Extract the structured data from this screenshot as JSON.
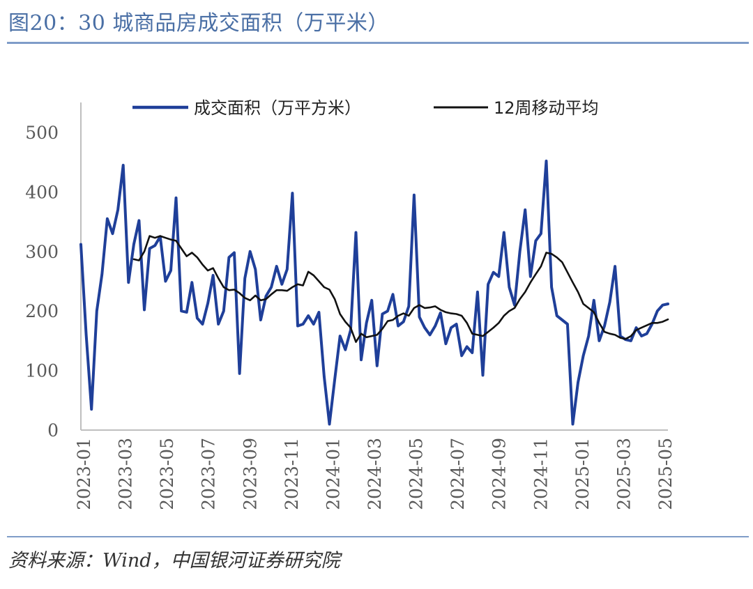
{
  "header": {
    "title": "图20：30 城商品房成交面积（万平米）"
  },
  "footer": {
    "source": "资料来源：Wind，中国银河证券研究院"
  },
  "chart_data": {
    "type": "line",
    "ylim": [
      0,
      550
    ],
    "yticks": [
      "0",
      "100",
      "200",
      "300",
      "400",
      "500"
    ],
    "xticks": [
      "2023-01",
      "2023-03",
      "2023-05",
      "2023-07",
      "2023-09",
      "2023-11",
      "2024-01",
      "2024-03",
      "2024-05",
      "2024-07",
      "2024-09",
      "2024-11",
      "2025-01",
      "2025-03",
      "2025-05"
    ],
    "series": [
      {
        "name": "成交面积（万平方米）",
        "color": "#1f3f99",
        "points": [
          [
            0.0,
            312
          ],
          [
            0.5,
            160
          ],
          [
            1.0,
            35
          ],
          [
            1.5,
            200
          ],
          [
            2.0,
            262
          ],
          [
            2.5,
            355
          ],
          [
            3.0,
            330
          ],
          [
            3.5,
            370
          ],
          [
            4.0,
            445
          ],
          [
            4.5,
            248
          ],
          [
            5.0,
            312
          ],
          [
            5.5,
            352
          ],
          [
            6.0,
            202
          ],
          [
            6.5,
            305
          ],
          [
            7.0,
            310
          ],
          [
            7.5,
            325
          ],
          [
            8.0,
            250
          ],
          [
            8.5,
            268
          ],
          [
            9.0,
            390
          ],
          [
            9.5,
            200
          ],
          [
            10.0,
            198
          ],
          [
            10.5,
            248
          ],
          [
            11.0,
            188
          ],
          [
            11.5,
            178
          ],
          [
            12.0,
            213
          ],
          [
            12.5,
            260
          ],
          [
            13.0,
            178
          ],
          [
            13.5,
            200
          ],
          [
            14.0,
            290
          ],
          [
            14.5,
            298
          ],
          [
            15.0,
            95
          ],
          [
            15.5,
            255
          ],
          [
            16.0,
            300
          ],
          [
            16.5,
            270
          ],
          [
            17.0,
            185
          ],
          [
            17.5,
            225
          ],
          [
            18.0,
            240
          ],
          [
            18.5,
            275
          ],
          [
            19.0,
            245
          ],
          [
            19.5,
            270
          ],
          [
            20.0,
            398
          ],
          [
            20.5,
            175
          ],
          [
            21.0,
            178
          ],
          [
            21.5,
            192
          ],
          [
            22.0,
            178
          ],
          [
            22.5,
            198
          ],
          [
            23.0,
            90
          ],
          [
            23.5,
            10
          ],
          [
            24.0,
            85
          ],
          [
            24.5,
            158
          ],
          [
            25.0,
            135
          ],
          [
            25.5,
            168
          ],
          [
            26.0,
            332
          ],
          [
            26.5,
            118
          ],
          [
            27.0,
            180
          ],
          [
            27.5,
            218
          ],
          [
            28.0,
            108
          ],
          [
            28.5,
            195
          ],
          [
            29.0,
            200
          ],
          [
            29.5,
            228
          ],
          [
            30.0,
            175
          ],
          [
            30.5,
            182
          ],
          [
            31.0,
            208
          ],
          [
            31.5,
            395
          ],
          [
            32.0,
            190
          ],
          [
            32.5,
            172
          ],
          [
            33.0,
            160
          ],
          [
            33.5,
            175
          ],
          [
            34.0,
            197
          ],
          [
            34.5,
            145
          ],
          [
            35.0,
            172
          ],
          [
            35.5,
            178
          ],
          [
            36.0,
            125
          ],
          [
            36.5,
            140
          ],
          [
            37.0,
            130
          ],
          [
            37.5,
            232
          ],
          [
            38.0,
            92
          ],
          [
            38.5,
            245
          ],
          [
            39.0,
            265
          ],
          [
            39.5,
            258
          ],
          [
            40.0,
            332
          ],
          [
            40.5,
            240
          ],
          [
            41.0,
            210
          ],
          [
            41.5,
            300
          ],
          [
            42.0,
            370
          ],
          [
            42.5,
            258
          ],
          [
            43.0,
            318
          ],
          [
            43.5,
            330
          ],
          [
            44.0,
            452
          ],
          [
            44.5,
            240
          ],
          [
            45.0,
            192
          ],
          [
            45.5,
            185
          ],
          [
            46.0,
            178
          ],
          [
            46.5,
            10
          ],
          [
            47.0,
            80
          ],
          [
            47.5,
            125
          ],
          [
            48.0,
            158
          ],
          [
            48.5,
            218
          ],
          [
            49.0,
            150
          ],
          [
            49.5,
            175
          ],
          [
            50.0,
            215
          ],
          [
            50.5,
            275
          ],
          [
            51.0,
            158
          ],
          [
            51.5,
            152
          ],
          [
            52.0,
            150
          ],
          [
            52.5,
            172
          ],
          [
            53.0,
            158
          ],
          [
            53.5,
            162
          ],
          [
            54.0,
            178
          ],
          [
            54.5,
            200
          ],
          [
            55.0,
            210
          ],
          [
            55.5,
            212
          ]
        ]
      },
      {
        "name": "12周移动平均",
        "color": "#111111",
        "points": [
          [
            5.0,
            287
          ],
          [
            5.5,
            285
          ],
          [
            6.0,
            300
          ],
          [
            6.5,
            326
          ],
          [
            7.0,
            323
          ],
          [
            7.5,
            326
          ],
          [
            8.0,
            323
          ],
          [
            8.5,
            320
          ],
          [
            9.0,
            318
          ],
          [
            9.5,
            305
          ],
          [
            10.0,
            292
          ],
          [
            10.5,
            298
          ],
          [
            11.0,
            290
          ],
          [
            11.5,
            278
          ],
          [
            12.0,
            268
          ],
          [
            12.5,
            272
          ],
          [
            13.0,
            255
          ],
          [
            13.5,
            240
          ],
          [
            14.0,
            235
          ],
          [
            14.5,
            236
          ],
          [
            15.0,
            230
          ],
          [
            15.5,
            222
          ],
          [
            16.0,
            218
          ],
          [
            16.5,
            226
          ],
          [
            17.0,
            218
          ],
          [
            17.5,
            220
          ],
          [
            18.0,
            228
          ],
          [
            18.5,
            235
          ],
          [
            19.0,
            235
          ],
          [
            19.5,
            234
          ],
          [
            20.0,
            240
          ],
          [
            20.5,
            245
          ],
          [
            21.0,
            243
          ],
          [
            21.5,
            266
          ],
          [
            22.0,
            260
          ],
          [
            22.5,
            250
          ],
          [
            23.0,
            240
          ],
          [
            23.5,
            236
          ],
          [
            24.0,
            220
          ],
          [
            24.5,
            195
          ],
          [
            25.0,
            182
          ],
          [
            25.5,
            172
          ],
          [
            26.0,
            148
          ],
          [
            26.5,
            162
          ],
          [
            27.0,
            156
          ],
          [
            27.5,
            158
          ],
          [
            28.0,
            160
          ],
          [
            28.5,
            170
          ],
          [
            29.0,
            183
          ],
          [
            29.5,
            185
          ],
          [
            30.0,
            192
          ],
          [
            30.5,
            196
          ],
          [
            31.0,
            192
          ],
          [
            31.5,
            205
          ],
          [
            32.0,
            210
          ],
          [
            32.5,
            205
          ],
          [
            33.0,
            206
          ],
          [
            33.5,
            208
          ],
          [
            34.0,
            202
          ],
          [
            34.5,
            198
          ],
          [
            35.0,
            196
          ],
          [
            35.5,
            195
          ],
          [
            36.0,
            192
          ],
          [
            36.5,
            180
          ],
          [
            37.0,
            162
          ],
          [
            37.5,
            160
          ],
          [
            38.0,
            158
          ],
          [
            38.5,
            165
          ],
          [
            39.0,
            172
          ],
          [
            39.5,
            180
          ],
          [
            40.0,
            192
          ],
          [
            40.5,
            200
          ],
          [
            41.0,
            205
          ],
          [
            41.5,
            220
          ],
          [
            42.0,
            232
          ],
          [
            42.5,
            248
          ],
          [
            43.0,
            262
          ],
          [
            43.5,
            275
          ],
          [
            44.0,
            298
          ],
          [
            44.5,
            296
          ],
          [
            45.0,
            290
          ],
          [
            45.5,
            282
          ],
          [
            46.0,
            265
          ],
          [
            46.5,
            248
          ],
          [
            47.0,
            232
          ],
          [
            47.5,
            212
          ],
          [
            48.0,
            205
          ],
          [
            48.5,
            198
          ],
          [
            49.0,
            180
          ],
          [
            49.5,
            165
          ],
          [
            50.0,
            162
          ],
          [
            50.5,
            160
          ],
          [
            51.0,
            155
          ],
          [
            51.5,
            153
          ],
          [
            52.0,
            158
          ],
          [
            52.5,
            168
          ],
          [
            53.0,
            172
          ],
          [
            53.5,
            176
          ],
          [
            54.0,
            180
          ],
          [
            54.5,
            180
          ],
          [
            55.0,
            182
          ],
          [
            55.5,
            186
          ]
        ]
      }
    ]
  }
}
